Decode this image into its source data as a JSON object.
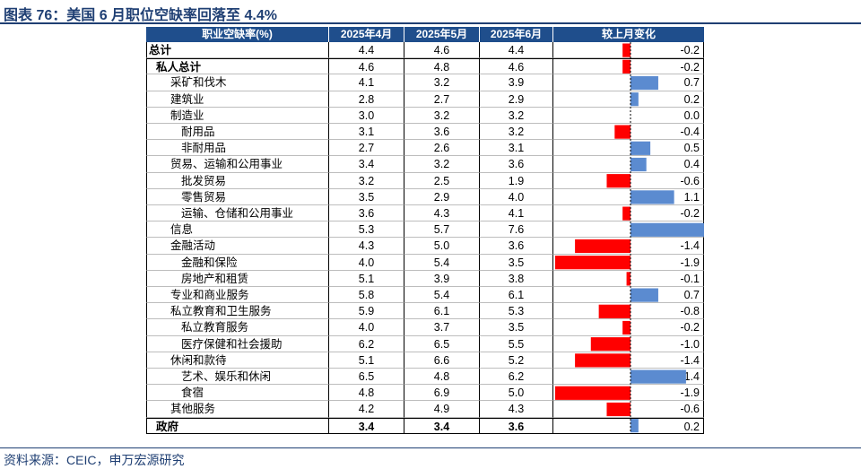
{
  "title": "图表 76：美国 6 月职位空缺率回落至 4.4%",
  "source": "资料来源：CEIC，申万宏源研究",
  "colors": {
    "header_bg": "#1f4e8c",
    "positive": "#5b8bd0",
    "negative": "#ff0000",
    "title": "#1f3f73"
  },
  "headers": {
    "label": "职业空缺率(%)",
    "col1": "2025年4月",
    "col2": "2025年5月",
    "col3": "2025年6月",
    "change": "较上月变化"
  },
  "chart_data": {
    "type": "table",
    "bar_axis_range": [
      -1.9,
      1.9
    ],
    "rows": [
      {
        "label": "总计",
        "level": 0,
        "bold": true,
        "apr": "4.4",
        "may": "4.6",
        "jun": "4.4",
        "change": -0.2,
        "change_text": "-0.2"
      },
      {
        "label": "私人总计",
        "level": 1,
        "bold": true,
        "apr": "4.6",
        "may": "4.8",
        "jun": "4.6",
        "change": -0.2,
        "change_text": "-0.2"
      },
      {
        "label": "采矿和伐木",
        "level": 2,
        "apr": "4.1",
        "may": "3.2",
        "jun": "3.9",
        "change": 0.7,
        "change_text": "0.7"
      },
      {
        "label": "建筑业",
        "level": 2,
        "apr": "2.8",
        "may": "2.7",
        "jun": "2.9",
        "change": 0.2,
        "change_text": "0.2"
      },
      {
        "label": "制造业",
        "level": 2,
        "apr": "3.0",
        "may": "3.2",
        "jun": "3.2",
        "change": 0.0,
        "change_text": "0.0"
      },
      {
        "label": "耐用品",
        "level": 3,
        "apr": "3.1",
        "may": "3.6",
        "jun": "3.2",
        "change": -0.4,
        "change_text": "-0.4"
      },
      {
        "label": "非耐用品",
        "level": 3,
        "apr": "2.7",
        "may": "2.6",
        "jun": "3.1",
        "change": 0.5,
        "change_text": "0.5"
      },
      {
        "label": "贸易、运输和公用事业",
        "level": 2,
        "apr": "3.4",
        "may": "3.2",
        "jun": "3.6",
        "change": 0.4,
        "change_text": "0.4"
      },
      {
        "label": "批发贸易",
        "level": 3,
        "apr": "3.2",
        "may": "2.5",
        "jun": "1.9",
        "change": -0.6,
        "change_text": "-0.6"
      },
      {
        "label": "零售贸易",
        "level": 3,
        "apr": "3.5",
        "may": "2.9",
        "jun": "4.0",
        "change": 1.1,
        "change_text": "1.1"
      },
      {
        "label": "运输、仓储和公用事业",
        "level": 3,
        "apr": "3.6",
        "may": "4.3",
        "jun": "4.1",
        "change": -0.2,
        "change_text": "-0.2"
      },
      {
        "label": "信息",
        "level": 2,
        "apr": "5.3",
        "may": "5.7",
        "jun": "7.6",
        "change": 1.9,
        "change_text": "1.9"
      },
      {
        "label": "金融活动",
        "level": 2,
        "apr": "4.3",
        "may": "5.0",
        "jun": "3.6",
        "change": -1.4,
        "change_text": "-1.4"
      },
      {
        "label": "金融和保险",
        "level": 3,
        "apr": "4.0",
        "may": "5.4",
        "jun": "3.5",
        "change": -1.9,
        "change_text": "-1.9"
      },
      {
        "label": "房地产和租赁",
        "level": 3,
        "apr": "5.1",
        "may": "3.9",
        "jun": "3.8",
        "change": -0.1,
        "change_text": "-0.1"
      },
      {
        "label": "专业和商业服务",
        "level": 2,
        "apr": "5.8",
        "may": "5.4",
        "jun": "6.1",
        "change": 0.7,
        "change_text": "0.7"
      },
      {
        "label": "私立教育和卫生服务",
        "level": 2,
        "apr": "5.9",
        "may": "6.1",
        "jun": "5.3",
        "change": -0.8,
        "change_text": "-0.8"
      },
      {
        "label": "私立教育服务",
        "level": 3,
        "apr": "4.0",
        "may": "3.7",
        "jun": "3.5",
        "change": -0.2,
        "change_text": "-0.2"
      },
      {
        "label": "医疗保健和社会援助",
        "level": 3,
        "apr": "6.2",
        "may": "6.5",
        "jun": "5.5",
        "change": -1.0,
        "change_text": "-1.0"
      },
      {
        "label": "休闲和款待",
        "level": 2,
        "apr": "5.1",
        "may": "6.6",
        "jun": "5.2",
        "change": -1.4,
        "change_text": "-1.4"
      },
      {
        "label": "艺术、娱乐和休闲",
        "level": 3,
        "apr": "6.5",
        "may": "4.8",
        "jun": "6.2",
        "change": 1.4,
        "change_text": "1.4"
      },
      {
        "label": "食宿",
        "level": 3,
        "apr": "4.8",
        "may": "6.9",
        "jun": "5.0",
        "change": -1.9,
        "change_text": "-1.9"
      },
      {
        "label": "其他服务",
        "level": 2,
        "apr": "4.2",
        "may": "4.9",
        "jun": "4.3",
        "change": -0.6,
        "change_text": "-0.6"
      },
      {
        "label": "政府",
        "level": 1,
        "bold": true,
        "apr": "3.4",
        "may": "3.4",
        "jun": "3.6",
        "change": 0.2,
        "change_text": "0.2"
      }
    ]
  }
}
